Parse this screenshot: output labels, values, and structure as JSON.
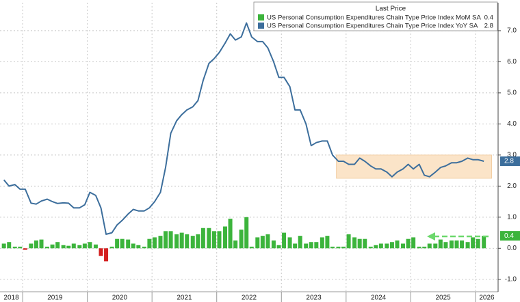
{
  "chart_data": {
    "type": "combo",
    "legend_title": "Last Price",
    "legend": "top-right",
    "grid": true,
    "x": [
      2018.71,
      2018.79,
      2018.88,
      2018.96,
      2019.04,
      2019.13,
      2019.21,
      2019.29,
      2019.38,
      2019.46,
      2019.54,
      2019.63,
      2019.71,
      2019.79,
      2019.88,
      2019.96,
      2020.04,
      2020.13,
      2020.21,
      2020.29,
      2020.38,
      2020.46,
      2020.54,
      2020.63,
      2020.71,
      2020.79,
      2020.88,
      2020.96,
      2021.04,
      2021.13,
      2021.21,
      2021.29,
      2021.38,
      2021.46,
      2021.54,
      2021.63,
      2021.71,
      2021.79,
      2021.88,
      2021.96,
      2022.04,
      2022.13,
      2022.21,
      2022.29,
      2022.38,
      2022.46,
      2022.54,
      2022.63,
      2022.71,
      2022.79,
      2022.88,
      2022.96,
      2023.04,
      2023.13,
      2023.21,
      2023.29,
      2023.38,
      2023.46,
      2023.54,
      2023.63,
      2023.71,
      2023.79,
      2023.88,
      2023.96,
      2024.04,
      2024.13,
      2024.21,
      2024.29,
      2024.38,
      2024.46,
      2024.54,
      2024.63,
      2024.71,
      2024.79,
      2024.88,
      2024.96,
      2025.04,
      2025.13,
      2025.21,
      2025.29,
      2025.38,
      2025.46,
      2025.54,
      2025.63,
      2025.71,
      2025.79,
      2025.88,
      2025.96,
      2026.04,
      2026.13
    ],
    "series": [
      {
        "name": "US Personal Consumption Expenditures Chain Type Price Index MoM SA",
        "type": "bar",
        "color": "#3cb43c",
        "negative_color": "#d42020",
        "values": [
          0.15,
          0.2,
          0.05,
          0.05,
          -0.05,
          0.15,
          0.25,
          0.28,
          0.05,
          0.12,
          0.2,
          0.1,
          0.08,
          0.15,
          0.1,
          0.15,
          0.2,
          0.12,
          -0.25,
          -0.42,
          0.05,
          0.3,
          0.3,
          0.28,
          0.15,
          0.1,
          0.05,
          0.3,
          0.35,
          0.4,
          0.55,
          0.55,
          0.45,
          0.5,
          0.45,
          0.4,
          0.45,
          0.65,
          0.65,
          0.55,
          0.55,
          0.7,
          0.95,
          0.25,
          0.6,
          1.0,
          0.05,
          0.35,
          0.4,
          0.45,
          0.25,
          0.1,
          0.5,
          0.35,
          0.15,
          0.4,
          0.15,
          0.2,
          0.2,
          0.35,
          0.4,
          0.05,
          0.05,
          0.05,
          0.45,
          0.35,
          0.3,
          0.3,
          0.05,
          0.1,
          0.15,
          0.15,
          0.2,
          0.25,
          0.15,
          0.3,
          0.35,
          0.05,
          0.05,
          0.15,
          0.15,
          0.28,
          0.2,
          0.25,
          0.25,
          0.25,
          0.2,
          0.35,
          0.3,
          0.4
        ]
      },
      {
        "name": "US Personal Consumption Expenditures Chain Type Price Index YoY SA",
        "type": "line",
        "color": "#3c6e9c",
        "values": [
          2.2,
          2.0,
          2.05,
          1.9,
          1.9,
          1.45,
          1.42,
          1.52,
          1.58,
          1.5,
          1.44,
          1.46,
          1.45,
          1.3,
          1.3,
          1.4,
          1.8,
          1.7,
          1.3,
          0.45,
          0.5,
          0.75,
          0.9,
          1.1,
          1.25,
          1.2,
          1.2,
          1.3,
          1.5,
          1.8,
          2.6,
          3.7,
          4.1,
          4.3,
          4.45,
          4.55,
          4.75,
          5.4,
          5.95,
          6.1,
          6.3,
          6.6,
          6.9,
          6.7,
          6.8,
          7.25,
          6.8,
          6.65,
          6.65,
          6.45,
          6.0,
          5.5,
          5.5,
          5.2,
          4.45,
          4.45,
          4.0,
          3.3,
          3.4,
          3.45,
          3.45,
          3.0,
          2.8,
          2.8,
          2.7,
          2.7,
          2.9,
          2.8,
          2.65,
          2.55,
          2.55,
          2.45,
          2.3,
          2.45,
          2.55,
          2.7,
          2.55,
          2.7,
          2.35,
          2.3,
          2.45,
          2.6,
          2.65,
          2.75,
          2.75,
          2.8,
          2.9,
          2.85,
          2.85,
          2.8
        ]
      }
    ],
    "highlight_band": {
      "xlim": [
        2023.85,
        2026.25
      ],
      "ylim": [
        2.25,
        3.0
      ],
      "color": "#fbe4c8"
    },
    "xlim": [
      2018.65,
      2026.35
    ],
    "xticks": [
      2018,
      2019,
      2020,
      2021,
      2022,
      2023,
      2024,
      2025,
      2026
    ],
    "ylim": [
      -1.4,
      7.9
    ],
    "yticks": [
      {
        "value": -1,
        "label": "-1.0"
      },
      {
        "value": 0,
        "label": "0.0"
      },
      {
        "value": 1,
        "label": "1.0"
      },
      {
        "value": 2,
        "label": "2.0"
      },
      {
        "value": 3,
        "label": "3.0"
      },
      {
        "value": 4,
        "label": "4.0"
      },
      {
        "value": 5,
        "label": "5.0"
      },
      {
        "value": 6,
        "label": "6.0"
      },
      {
        "value": 7,
        "label": "7.0"
      }
    ]
  }
}
